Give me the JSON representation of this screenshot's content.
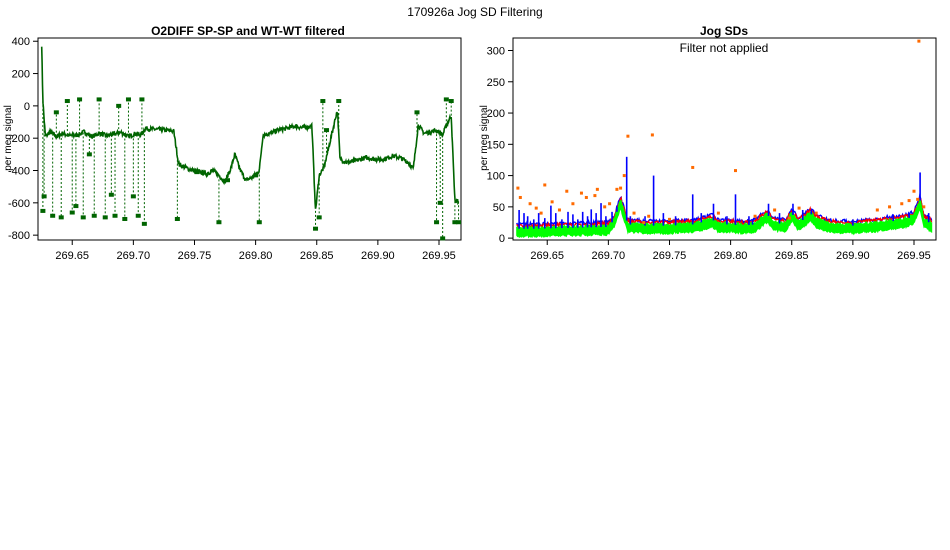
{
  "page_title": "170926a   Jog SD Filtering",
  "colors": {
    "o2diff": "#006400",
    "sd_blue": "#0000ff",
    "sd_red": "#ff0000",
    "sd_green": "#00ff00",
    "outlier_orange": "#ff6a00"
  },
  "chart_data": [
    {
      "type": "line",
      "title": "O2DIFF SP-SP and WT-WT filtered",
      "xlabel": "",
      "ylabel": "per meg signal",
      "xlim": [
        269.622,
        269.968
      ],
      "ylim": [
        -830,
        420
      ],
      "x_ticks": [
        "269.65",
        "269.70",
        "269.75",
        "269.80",
        "269.85",
        "269.90",
        "269.95"
      ],
      "x_tick_values": [
        269.65,
        269.7,
        269.75,
        269.8,
        269.85,
        269.9,
        269.95
      ],
      "y_ticks": [
        "-800",
        "-600",
        "-400",
        "-200",
        "0",
        "200",
        "400"
      ],
      "y_tick_values": [
        -800,
        -600,
        -400,
        -200,
        0,
        200,
        400
      ],
      "grid": false,
      "series": [
        {
          "baseline": [
            [
              269.625,
              380
            ],
            [
              269.626,
              30
            ],
            [
              269.628,
              -190
            ],
            [
              269.632,
              -160
            ],
            [
              269.637,
              -190
            ],
            [
              269.642,
              -170
            ],
            [
              269.648,
              -185
            ],
            [
              269.655,
              -180
            ],
            [
              269.66,
              -160
            ],
            [
              269.666,
              -190
            ],
            [
              269.672,
              -170
            ],
            [
              269.678,
              -185
            ],
            [
              269.684,
              -175
            ],
            [
              269.69,
              -165
            ],
            [
              269.696,
              -190
            ],
            [
              269.702,
              -170
            ],
            [
              269.706,
              -180
            ],
            [
              269.71,
              -140
            ],
            [
              269.718,
              -145
            ],
            [
              269.726,
              -150
            ],
            [
              269.733,
              -155
            ],
            [
              269.737,
              -360
            ],
            [
              269.745,
              -390
            ],
            [
              269.752,
              -405
            ],
            [
              269.76,
              -420
            ],
            [
              269.765,
              -400
            ],
            [
              269.77,
              -430
            ],
            [
              269.775,
              -470
            ],
            [
              269.78,
              -380
            ],
            [
              269.783,
              -300
            ],
            [
              269.787,
              -390
            ],
            [
              269.792,
              -460
            ],
            [
              269.798,
              -440
            ],
            [
              269.803,
              -400
            ],
            [
              269.806,
              -180
            ],
            [
              269.812,
              -170
            ],
            [
              269.818,
              -150
            ],
            [
              269.825,
              -140
            ],
            [
              269.832,
              -125
            ],
            [
              269.838,
              -135
            ],
            [
              269.843,
              -130
            ],
            [
              269.846,
              -120
            ],
            [
              269.849,
              -650
            ],
            [
              269.852,
              -430
            ],
            [
              269.856,
              -380
            ],
            [
              269.86,
              -250
            ],
            [
              269.864,
              -120
            ],
            [
              269.866,
              -50
            ],
            [
              269.867,
              -30
            ],
            [
              269.869,
              -330
            ],
            [
              269.875,
              -350
            ],
            [
              269.882,
              -340
            ],
            [
              269.89,
              -320
            ],
            [
              269.898,
              -330
            ],
            [
              269.905,
              -330
            ],
            [
              269.912,
              -310
            ],
            [
              269.918,
              -320
            ],
            [
              269.925,
              -350
            ],
            [
              269.929,
              -390
            ],
            [
              269.933,
              -120
            ],
            [
              269.938,
              -170
            ],
            [
              269.943,
              -160
            ],
            [
              269.948,
              -150
            ],
            [
              269.953,
              -180
            ],
            [
              269.956,
              -120
            ],
            [
              269.96,
              -60
            ],
            [
              269.963,
              -590
            ],
            [
              269.966,
              -590
            ]
          ],
          "excursions": [
            [
              269.626,
              -650
            ],
            [
              269.627,
              -560
            ],
            [
              269.634,
              -680
            ],
            [
              269.637,
              -40
            ],
            [
              269.641,
              -690
            ],
            [
              269.646,
              30
            ],
            [
              269.65,
              -660
            ],
            [
              269.653,
              -620
            ],
            [
              269.656,
              40
            ],
            [
              269.659,
              -690
            ],
            [
              269.664,
              -300
            ],
            [
              269.668,
              -680
            ],
            [
              269.672,
              40
            ],
            [
              269.677,
              -690
            ],
            [
              269.682,
              -550
            ],
            [
              269.685,
              -680
            ],
            [
              269.688,
              0
            ],
            [
              269.693,
              -700
            ],
            [
              269.696,
              40
            ],
            [
              269.7,
              -560
            ],
            [
              269.704,
              -680
            ],
            [
              269.707,
              40
            ],
            [
              269.709,
              -730
            ],
            [
              269.736,
              -700
            ],
            [
              269.752,
              -410
            ],
            [
              269.77,
              -720
            ],
            [
              269.777,
              -460
            ],
            [
              269.8,
              -430
            ],
            [
              269.803,
              -720
            ],
            [
              269.849,
              -760
            ],
            [
              269.852,
              -690
            ],
            [
              269.855,
              30
            ],
            [
              269.858,
              -150
            ],
            [
              269.868,
              30
            ],
            [
              269.932,
              -40
            ],
            [
              269.948,
              -720
            ],
            [
              269.951,
              -600
            ],
            [
              269.953,
              -820
            ],
            [
              269.956,
              40
            ],
            [
              269.96,
              30
            ],
            [
              269.963,
              -720
            ],
            [
              269.966,
              -720
            ]
          ]
        }
      ]
    },
    {
      "type": "line",
      "title": "Jog SDs",
      "annotation": "Filter not applied",
      "xlabel": "",
      "ylabel": "per meg signal",
      "xlim": [
        269.622,
        269.968
      ],
      "ylim": [
        -3,
        320
      ],
      "x_ticks": [
        "269.65",
        "269.70",
        "269.75",
        "269.80",
        "269.85",
        "269.90",
        "269.95"
      ],
      "x_tick_values": [
        269.65,
        269.7,
        269.75,
        269.8,
        269.85,
        269.9,
        269.95
      ],
      "y_ticks": [
        "0",
        "50",
        "100",
        "150",
        "200",
        "250",
        "300"
      ],
      "y_tick_values": [
        0,
        50,
        100,
        150,
        200,
        250,
        300
      ],
      "grid": false,
      "series": [
        {
          "base": [
            [
              269.625,
              15
            ],
            [
              269.64,
              15
            ],
            [
              269.66,
              16
            ],
            [
              269.68,
              17
            ],
            [
              269.7,
              18
            ],
            [
              269.705,
              30
            ],
            [
              269.71,
              60
            ],
            [
              269.713,
              40
            ],
            [
              269.716,
              22
            ],
            [
              269.73,
              20
            ],
            [
              269.75,
              20
            ],
            [
              269.77,
              22
            ],
            [
              269.785,
              30
            ],
            [
              269.79,
              22
            ],
            [
              269.8,
              22
            ],
            [
              269.81,
              20
            ],
            [
              269.82,
              22
            ],
            [
              269.83,
              38
            ],
            [
              269.835,
              25
            ],
            [
              269.845,
              22
            ],
            [
              269.85,
              40
            ],
            [
              269.855,
              25
            ],
            [
              269.86,
              30
            ],
            [
              269.865,
              40
            ],
            [
              269.87,
              30
            ],
            [
              269.88,
              22
            ],
            [
              269.89,
              20
            ],
            [
              269.9,
              20
            ],
            [
              269.91,
              22
            ],
            [
              269.92,
              23
            ],
            [
              269.93,
              27
            ],
            [
              269.94,
              28
            ],
            [
              269.95,
              35
            ],
            [
              269.955,
              60
            ],
            [
              269.958,
              30
            ],
            [
              269.965,
              22
            ]
          ],
          "blue_spikes": [
            [
              269.627,
              45
            ],
            [
              269.631,
              40
            ],
            [
              269.634,
              35
            ],
            [
              269.639,
              30
            ],
            [
              269.643,
              40
            ],
            [
              269.648,
              32
            ],
            [
              269.653,
              52
            ],
            [
              269.657,
              40
            ],
            [
              269.662,
              30
            ],
            [
              269.667,
              42
            ],
            [
              269.671,
              38
            ],
            [
              269.675,
              30
            ],
            [
              269.679,
              42
            ],
            [
              269.683,
              35
            ],
            [
              269.686,
              46
            ],
            [
              269.69,
              40
            ],
            [
              269.694,
              56
            ],
            [
              269.698,
              35
            ],
            [
              269.703,
              42
            ],
            [
              269.707,
              50
            ],
            [
              269.715,
              130
            ],
            [
              269.718,
              35
            ],
            [
              269.73,
              35
            ],
            [
              269.737,
              100
            ],
            [
              269.745,
              40
            ],
            [
              269.755,
              35
            ],
            [
              269.769,
              70
            ],
            [
              269.776,
              40
            ],
            [
              269.786,
              55
            ],
            [
              269.797,
              35
            ],
            [
              269.804,
              70
            ],
            [
              269.815,
              35
            ],
            [
              269.818,
              30
            ],
            [
              269.831,
              55
            ],
            [
              269.84,
              40
            ],
            [
              269.851,
              55
            ],
            [
              269.859,
              45
            ],
            [
              269.866,
              45
            ],
            [
              269.9,
              30
            ],
            [
              269.933,
              38
            ],
            [
              269.946,
              40
            ],
            [
              269.955,
              105
            ],
            [
              269.962,
              40
            ]
          ],
          "outliers": [
            [
              269.626,
              80
            ],
            [
              269.628,
              65
            ],
            [
              269.636,
              55
            ],
            [
              269.641,
              48
            ],
            [
              269.645,
              40
            ],
            [
              269.648,
              85
            ],
            [
              269.654,
              58
            ],
            [
              269.66,
              45
            ],
            [
              269.666,
              75
            ],
            [
              269.671,
              55
            ],
            [
              269.678,
              72
            ],
            [
              269.682,
              65
            ],
            [
              269.689,
              68
            ],
            [
              269.691,
              78
            ],
            [
              269.697,
              50
            ],
            [
              269.701,
              55
            ],
            [
              269.707,
              78
            ],
            [
              269.71,
              80
            ],
            [
              269.713,
              100
            ],
            [
              269.716,
              163
            ],
            [
              269.721,
              40
            ],
            [
              269.729,
              25
            ],
            [
              269.733,
              35
            ],
            [
              269.736,
              165
            ],
            [
              269.75,
              30
            ],
            [
              269.769,
              113
            ],
            [
              269.79,
              40
            ],
            [
              269.804,
              108
            ],
            [
              269.82,
              35
            ],
            [
              269.836,
              45
            ],
            [
              269.848,
              32
            ],
            [
              269.856,
              48
            ],
            [
              269.87,
              40
            ],
            [
              269.92,
              45
            ],
            [
              269.93,
              50
            ],
            [
              269.94,
              55
            ],
            [
              269.946,
              60
            ],
            [
              269.95,
              75
            ],
            [
              269.953,
              62
            ],
            [
              269.954,
              315
            ],
            [
              269.958,
              50
            ]
          ]
        }
      ]
    }
  ]
}
